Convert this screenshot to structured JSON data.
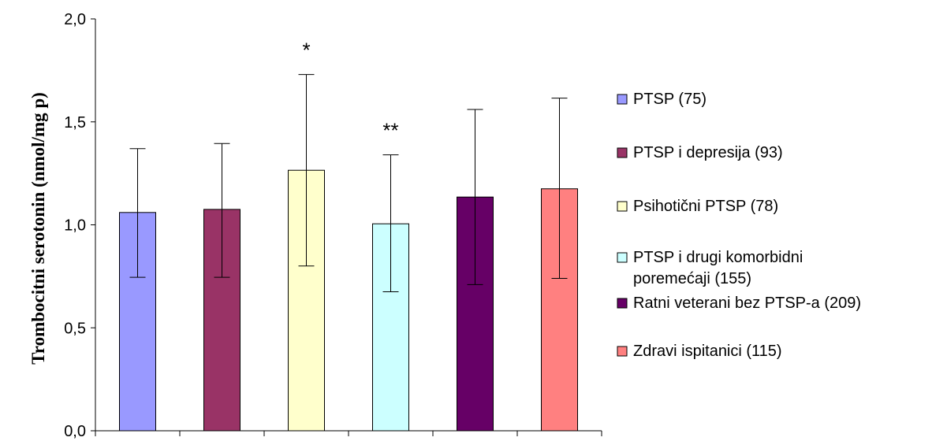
{
  "chart_data": {
    "type": "bar",
    "title": "",
    "xlabel": "",
    "ylabel": "Trombocitni serotonin (nmol/mg p)",
    "ylim": [
      0.0,
      2.0
    ],
    "yticks": [
      "0,0",
      "0,5",
      "1,0",
      "1,5",
      "2,0"
    ],
    "ytick_values": [
      0.0,
      0.5,
      1.0,
      1.5,
      2.0
    ],
    "grid": false,
    "legend_position": "right",
    "series": [
      {
        "name": "PTSP (75)",
        "value": 1.06,
        "err_low": 0.745,
        "err_high": 1.37,
        "color": "#9999ff",
        "annotation": ""
      },
      {
        "name": "PTSP i depresija (93)",
        "value": 1.075,
        "err_low": 0.745,
        "err_high": 1.395,
        "color": "#993366",
        "annotation": ""
      },
      {
        "name": "Psihotični PTSP (78)",
        "value": 1.265,
        "err_low": 0.8,
        "err_high": 1.73,
        "color": "#ffffcc",
        "annotation": "*"
      },
      {
        "name": "PTSP i drugi komorbidni poremećaji (155)",
        "legend_lines": [
          "PTSP i drugi komorbidni",
          "poremećaji (155)"
        ],
        "value": 1.005,
        "err_low": 0.675,
        "err_high": 1.34,
        "color": "#ccffff",
        "annotation": "**"
      },
      {
        "name": "Ratni veterani bez PTSP-a (209)",
        "value": 1.135,
        "err_low": 0.71,
        "err_high": 1.56,
        "color": "#660066",
        "annotation": ""
      },
      {
        "name": "Zdravi ispitanici (115)",
        "value": 1.175,
        "err_low": 0.74,
        "err_high": 1.615,
        "color": "#ff8080",
        "annotation": ""
      }
    ]
  }
}
